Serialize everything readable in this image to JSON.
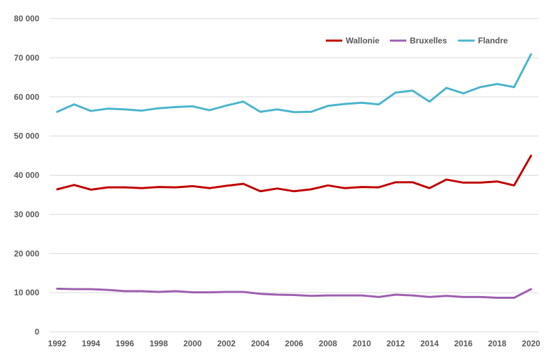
{
  "chart_data": {
    "type": "line",
    "title": "",
    "xlabel": "",
    "ylabel": "",
    "x": [
      1992,
      1993,
      1994,
      1995,
      1996,
      1997,
      1998,
      1999,
      2000,
      2001,
      2002,
      2003,
      2004,
      2005,
      2006,
      2007,
      2008,
      2009,
      2010,
      2011,
      2012,
      2013,
      2014,
      2015,
      2016,
      2017,
      2018,
      2019,
      2020
    ],
    "xticks": [
      "1992",
      "1994",
      "1996",
      "1998",
      "2000",
      "2002",
      "2004",
      "2006",
      "2008",
      "2010",
      "2012",
      "2014",
      "2016",
      "2018",
      "2020"
    ],
    "ylim": [
      0,
      80000
    ],
    "yticks": [
      0,
      10000,
      20000,
      30000,
      40000,
      50000,
      60000,
      70000,
      80000
    ],
    "ytick_labels": [
      "0",
      "10 000",
      "20 000",
      "30 000",
      "40 000",
      "50 000",
      "60 000",
      "70 000",
      "80 000"
    ],
    "grid": "horizontal",
    "legend_position": "top-right",
    "series": [
      {
        "name": "Wallonie",
        "color": "#c00000",
        "values": [
          36400,
          37500,
          36300,
          36900,
          36900,
          36700,
          37000,
          36900,
          37200,
          36700,
          37300,
          37800,
          35900,
          36600,
          35900,
          36400,
          37400,
          36700,
          37000,
          36900,
          38200,
          38200,
          36700,
          38900,
          38100,
          38100,
          38400,
          37400,
          45000
        ]
      },
      {
        "name": "Bruxelles",
        "color": "#9e5fb0",
        "values": [
          11000,
          10900,
          10900,
          10700,
          10400,
          10400,
          10200,
          10400,
          10100,
          10100,
          10200,
          10200,
          9700,
          9500,
          9400,
          9200,
          9300,
          9300,
          9300,
          8900,
          9500,
          9300,
          8900,
          9200,
          8900,
          8900,
          8700,
          8700,
          10900
        ]
      },
      {
        "name": "Flandre",
        "color": "#4bb4cc",
        "values": [
          56200,
          58100,
          56400,
          57000,
          56800,
          56500,
          57100,
          57400,
          57600,
          56600,
          57800,
          58800,
          56200,
          56800,
          56100,
          56200,
          57700,
          58200,
          58500,
          58100,
          61100,
          61600,
          58800,
          62300,
          60900,
          62500,
          63300,
          62500,
          70900
        ]
      }
    ]
  }
}
